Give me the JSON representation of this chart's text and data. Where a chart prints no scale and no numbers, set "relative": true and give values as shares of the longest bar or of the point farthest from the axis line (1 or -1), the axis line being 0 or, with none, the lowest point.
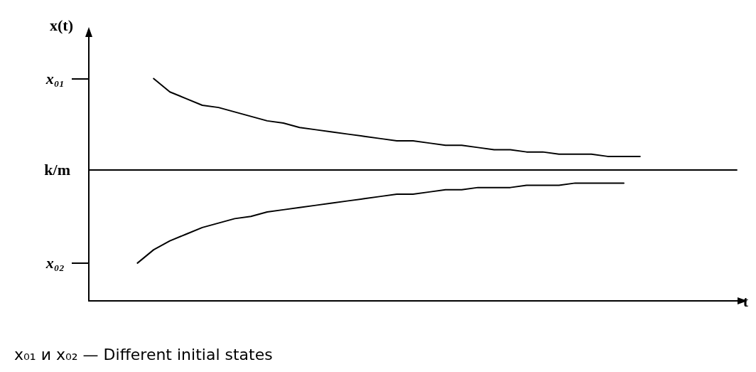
{
  "chart_data": {
    "type": "line",
    "relative": true,
    "ylabel": "x(t)",
    "xlabel": "t",
    "categories": [
      null,
      null,
      null,
      null,
      null,
      null,
      null,
      null,
      null,
      null,
      null,
      null,
      null,
      null,
      null,
      null,
      null,
      null,
      null,
      null,
      null,
      null,
      null,
      null,
      null,
      null,
      null,
      null,
      null,
      null,
      null,
      null,
      null,
      null,
      null,
      null,
      null,
      null,
      null,
      null,
      null
    ],
    "series": [
      {
        "color": "#000000",
        "values": [
          null,
          null,
          null,
          null,
          1.0,
          0.94,
          0.91,
          0.88,
          0.87,
          0.85,
          0.83,
          0.81,
          0.8,
          0.78,
          0.77,
          0.76,
          0.75,
          0.74,
          0.73,
          0.72,
          0.72,
          0.71,
          0.7,
          0.7,
          0.69,
          0.68,
          0.68,
          0.67,
          0.67,
          0.66,
          0.66,
          0.66,
          0.65,
          0.65,
          0.65,
          null,
          null,
          null,
          null,
          null,
          null
        ]
      },
      {
        "color": "#000000",
        "values": [
          null,
          null,
          null,
          0.17,
          0.23,
          0.27,
          0.3,
          0.33,
          0.35,
          0.37,
          0.38,
          0.4,
          0.41,
          0.42,
          0.43,
          0.44,
          0.45,
          0.46,
          0.47,
          0.48,
          0.48,
          0.49,
          0.5,
          0.5,
          0.51,
          0.51,
          0.51,
          0.52,
          0.52,
          0.52,
          0.53,
          0.53,
          0.53,
          0.53,
          null,
          null,
          null,
          null,
          null,
          null,
          null
        ]
      }
    ],
    "ref_lines": [
      {
        "axis": "y",
        "value": 0.59,
        "label": "k/m",
        "color": "#000000"
      }
    ],
    "annotations": [
      "x₀₁",
      "x₀₂",
      "x₀₁ и x₀₂ — Different initial states"
    ],
    "marker": "none",
    "line_style": "solid",
    "grid": false
  }
}
